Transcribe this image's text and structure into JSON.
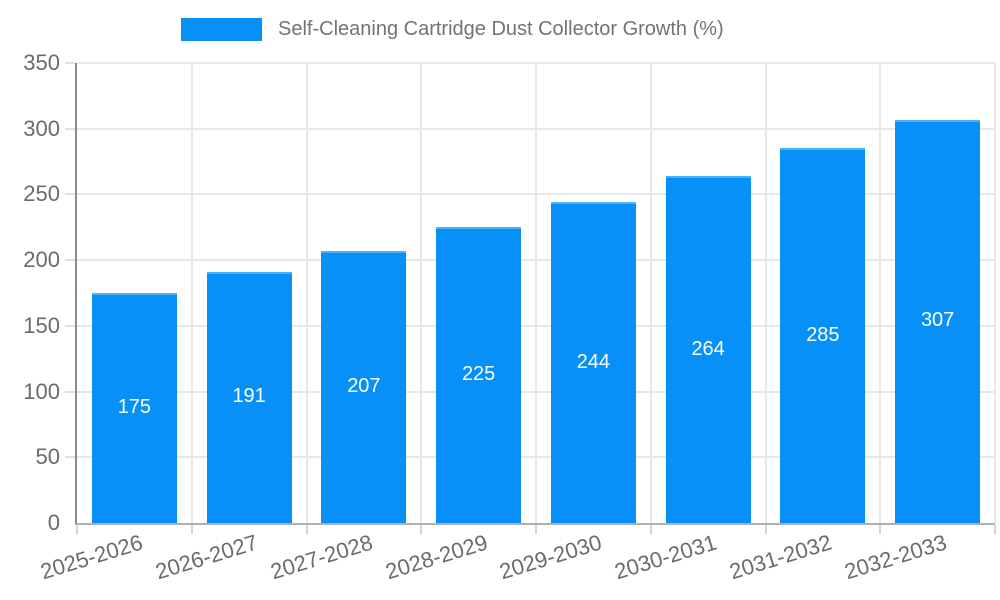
{
  "legend": {
    "label": "Self-Cleaning Cartridge Dust Collector Growth (%)"
  },
  "colors": {
    "bar": "#0690f8",
    "bar_edge": "#4cb0fa",
    "grid": "#e8e8e8",
    "axis_y": "#8c8c8c",
    "axis_x": "#b0b0b0",
    "tick_text": "#6b6b6b",
    "legend_text": "#737373",
    "value_label_text": "#ffffff",
    "background": "#ffffff"
  },
  "chart_data": {
    "type": "bar",
    "title": "Self-Cleaning Cartridge Dust Collector Growth (%)",
    "categories": [
      "2025-2026",
      "2026-2027",
      "2027-2028",
      "2028-2029",
      "2029-2030",
      "2030-2031",
      "2031-2032",
      "2032-2033"
    ],
    "values": [
      175,
      191,
      207,
      225,
      244,
      264,
      285,
      307
    ],
    "value_labels": [
      "175",
      "191",
      "207",
      "225",
      "244",
      "264",
      "285",
      "307"
    ],
    "xlabel": "",
    "ylabel": "",
    "ylim": [
      0,
      350
    ],
    "yticks": [
      0,
      50,
      100,
      150,
      200,
      250,
      300,
      350
    ],
    "grid": true,
    "legend_position": "top",
    "bar_color": "#0690f8",
    "value_label_position": "center-of-bar"
  }
}
